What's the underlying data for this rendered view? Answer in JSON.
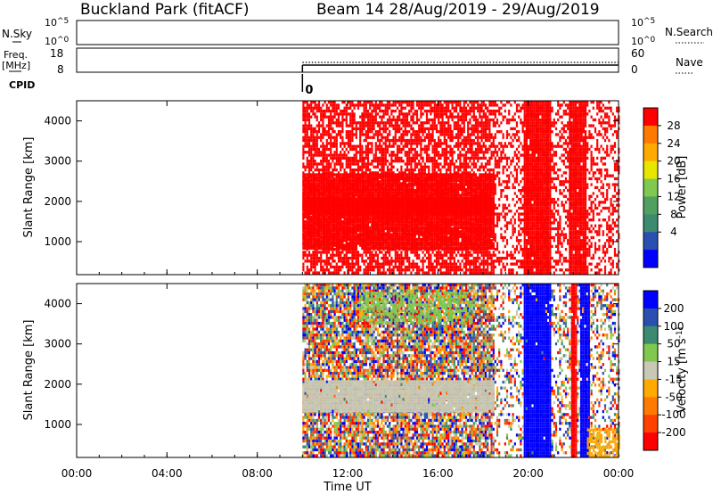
{
  "header": {
    "site": "Buckland Park (fitACF)",
    "beam_info": "Beam 14 28/Aug/2019 - 29/Aug/2019"
  },
  "nsky_panel": {
    "left_label": "N.Sky",
    "left_ticks": [
      {
        "base": "10",
        "exp": "^5"
      },
      {
        "base": "10",
        "exp": "^0"
      }
    ],
    "right_label": "N.Search",
    "right_ticks": [
      {
        "base": "10",
        "exp": "^5"
      },
      {
        "base": "10",
        "exp": "^0"
      }
    ]
  },
  "freq_panel": {
    "left_label_line1": "Freq.",
    "left_label_line2": "[MHz]",
    "left_ticks": [
      "18",
      "8"
    ],
    "right_label": "Nave",
    "right_ticks": [
      "60",
      "0"
    ],
    "data_start_hour": 10.0
  },
  "cpid_panel": {
    "label": "CPID",
    "value": "0",
    "start_hour": 10.0
  },
  "x_axis": {
    "label": "Time UT",
    "ticks": [
      "00:00",
      "04:00",
      "08:00",
      "12:00",
      "16:00",
      "20:00",
      "00:00"
    ],
    "tick_hours": [
      0,
      4,
      8,
      12,
      16,
      20,
      24
    ]
  },
  "chart_data": [
    {
      "type": "heatmap",
      "ylabel": "Slant Range [km]",
      "yticks": [
        1000,
        2000,
        3000,
        4000
      ],
      "xlim_hours": [
        0,
        24
      ],
      "ylim_km": [
        180,
        4500
      ],
      "data_start_hour": 10.0,
      "colorbar": {
        "label": "Power [dB]",
        "ticks": [
          "28",
          "24",
          "20",
          "16",
          "12",
          "8",
          "4"
        ],
        "colors": [
          "#ff0000",
          "#ff7a00",
          "#ffaa00",
          "#e6e600",
          "#80c850",
          "#50a060",
          "#3c8a70",
          "#2a4fb0",
          "#0000ff"
        ]
      },
      "regions": [
        {
          "t0": 10.0,
          "t1": 18.5,
          "r0": 200,
          "r1": 4500,
          "color": "#ff0000",
          "density": 0.72
        },
        {
          "t0": 10.0,
          "t1": 18.5,
          "r0": 800,
          "r1": 2700,
          "color": "#ff0000",
          "density": 0.97
        },
        {
          "t0": 10.0,
          "t1": 18.5,
          "r0": 1700,
          "r1": 2100,
          "color": "#ff0000",
          "density": 1.0
        },
        {
          "t0": 18.5,
          "t1": 24.0,
          "r0": 200,
          "r1": 4500,
          "color": "#ff0000",
          "density": 0.42
        },
        {
          "t0": 19.8,
          "t1": 21.0,
          "r0": 200,
          "r1": 4500,
          "color": "#ff0000",
          "density": 0.97
        },
        {
          "t0": 21.8,
          "t1": 22.5,
          "r0": 200,
          "r1": 4500,
          "color": "#ff0000",
          "density": 0.97
        }
      ]
    },
    {
      "type": "heatmap",
      "ylabel": "Slant Range [km]",
      "yticks": [
        1000,
        2000,
        3000,
        4000
      ],
      "xlim_hours": [
        0,
        24
      ],
      "ylim_km": [
        180,
        4500
      ],
      "data_start_hour": 10.0,
      "colorbar": {
        "label": "Velocity [m s^-1]",
        "ticks": [
          "200",
          "100",
          "50",
          "15",
          "-15",
          "-50",
          "-100",
          "-200"
        ],
        "colors": [
          "#0000ff",
          "#2a4fb0",
          "#3c8a70",
          "#80c850",
          "#c8c8b4",
          "#ffaa00",
          "#ff7a00",
          "#ff4000",
          "#ff0000"
        ]
      },
      "regions": [
        {
          "t0": 10.0,
          "t1": 18.5,
          "r0": 200,
          "r1": 4500,
          "color": "mix",
          "density": 0.85
        },
        {
          "t0": 10.0,
          "t1": 18.5,
          "r0": 1300,
          "r1": 2100,
          "color": "#c8c8b4",
          "density": 0.95
        },
        {
          "t0": 12.5,
          "t1": 17.5,
          "r0": 3500,
          "r1": 4300,
          "color": "#80c850",
          "density": 0.5
        },
        {
          "t0": 18.5,
          "t1": 24.0,
          "r0": 200,
          "r1": 4500,
          "color": "mix",
          "density": 0.35
        },
        {
          "t0": 19.8,
          "t1": 21.0,
          "r0": 200,
          "r1": 4500,
          "color": "#0000ff",
          "density": 0.97
        },
        {
          "t0": 21.9,
          "t1": 22.1,
          "r0": 200,
          "r1": 4500,
          "color": "#ff0000",
          "density": 0.97
        },
        {
          "t0": 22.3,
          "t1": 22.7,
          "r0": 200,
          "r1": 4500,
          "color": "#0000ff",
          "density": 0.97
        },
        {
          "t0": 22.6,
          "t1": 24.0,
          "r0": 200,
          "r1": 900,
          "color": "#ffaa00",
          "density": 0.6
        }
      ]
    }
  ]
}
